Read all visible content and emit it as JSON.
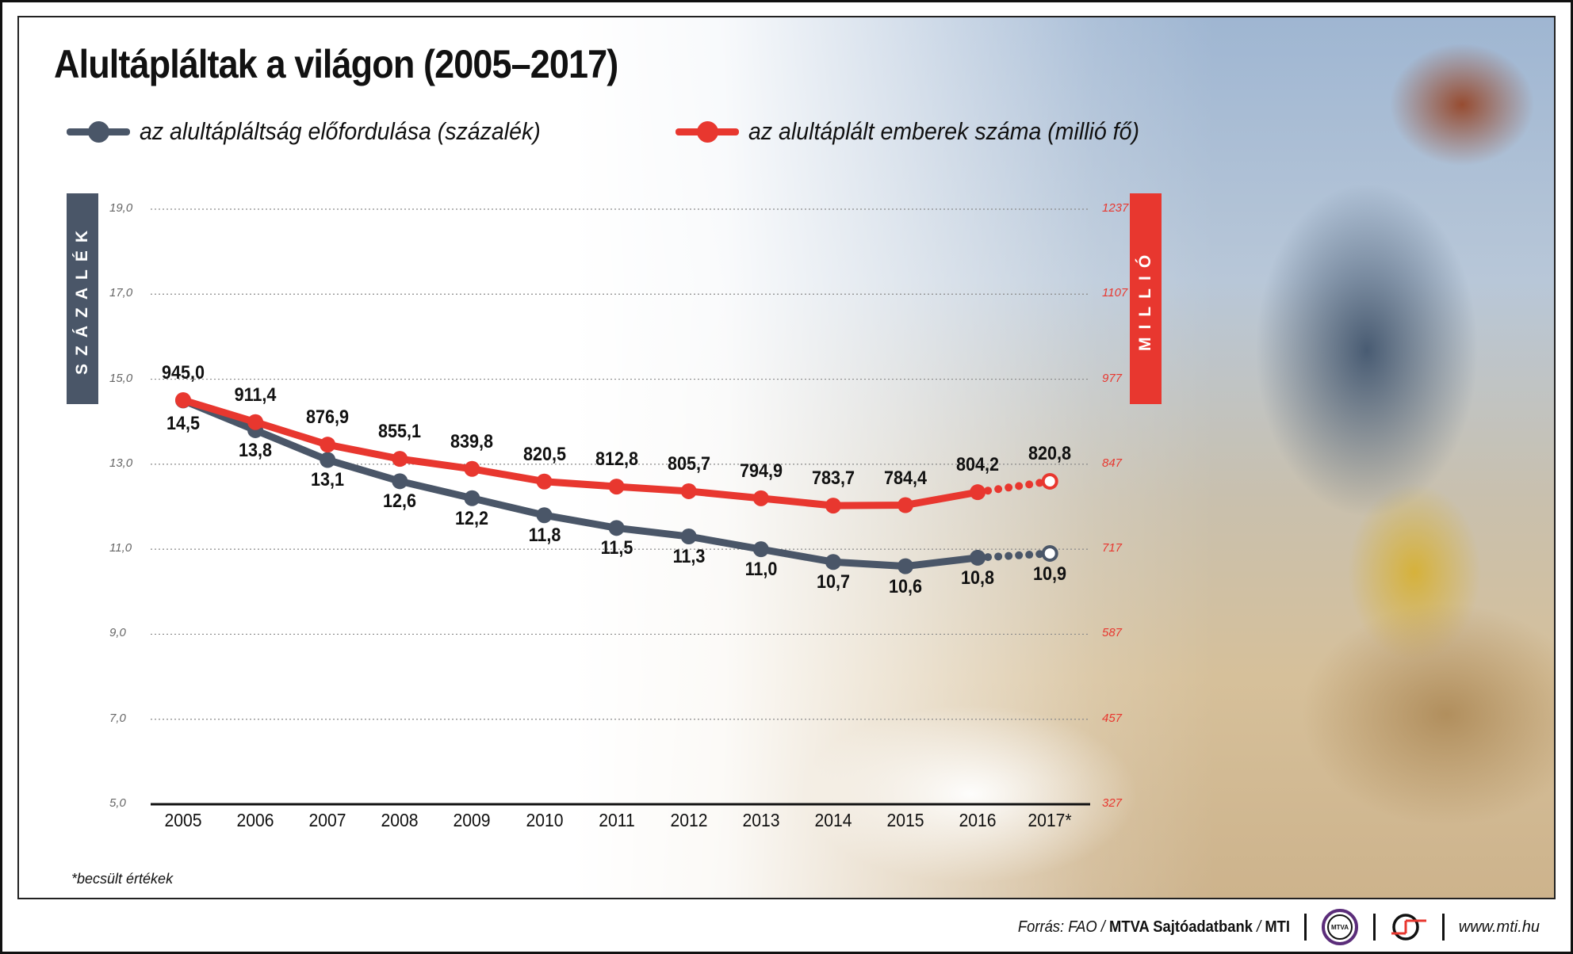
{
  "title": "Alultápláltak a világon (2005–2017)",
  "legend": [
    {
      "label": "az alultápláltság előfordulása (százalék)",
      "color": "#4a5668"
    },
    {
      "label": "az alultáplált emberek száma (millió fő)",
      "color": "#e8372f"
    }
  ],
  "axes": {
    "left_title": "SZÁZALÉK",
    "right_title": "MILLIÓ",
    "left_ticks": [
      "19,0",
      "17,0",
      "15,0",
      "13,0",
      "11,0",
      "9,0",
      "7,0",
      "5,0"
    ],
    "right_ticks": [
      "1237",
      "1107",
      "977",
      "847",
      "717",
      "587",
      "457",
      "327"
    ]
  },
  "footnote": "*becsült értékek",
  "footer": {
    "source_prefix": "Forrás: FAO / ",
    "source_bold": "MTVA Sajtóadatbank",
    "source_sep": " / ",
    "source_bold2": "MTI",
    "logo1_text": "MTVA",
    "url": "www.mti.hu"
  },
  "chart_data": {
    "type": "line",
    "title": "Alultápláltak a világon (2005–2017)",
    "xlabel": "",
    "ylabel": "százalék",
    "y2label": "millió",
    "categories": [
      "2005",
      "2006",
      "2007",
      "2008",
      "2009",
      "2010",
      "2011",
      "2012",
      "2013",
      "2014",
      "2015",
      "2016",
      "2017*"
    ],
    "series": [
      {
        "name": "az alultápláltság előfordulása (százalék)",
        "axis": "left",
        "color": "#4a5668",
        "values": [
          14.5,
          13.8,
          13.1,
          12.6,
          12.2,
          11.8,
          11.5,
          11.3,
          11.0,
          10.7,
          10.6,
          10.8,
          10.9
        ],
        "labels": [
          "14,5",
          "13,8",
          "13,1",
          "12,6",
          "12,2",
          "11,8",
          "11,5",
          "11,3",
          "11,0",
          "10,7",
          "10,6",
          "10,8",
          "10,9"
        ]
      },
      {
        "name": "az alultáplált emberek száma (millió fő)",
        "axis": "right",
        "color": "#e8372f",
        "values": [
          945.0,
          911.4,
          876.9,
          855.1,
          839.8,
          820.5,
          812.8,
          805.7,
          794.9,
          783.7,
          784.4,
          804.2,
          820.8
        ],
        "labels": [
          "945,0",
          "911,4",
          "876,9",
          "855,1",
          "839,8",
          "820,5",
          "812,8",
          "805,7",
          "794,9",
          "783,7",
          "784,4",
          "804,2",
          "820,8"
        ]
      }
    ],
    "ylim": [
      5.0,
      19.0
    ],
    "y2lim": [
      327,
      1237
    ],
    "grid": true,
    "estimated_last_point": true,
    "legend_position": "top"
  }
}
